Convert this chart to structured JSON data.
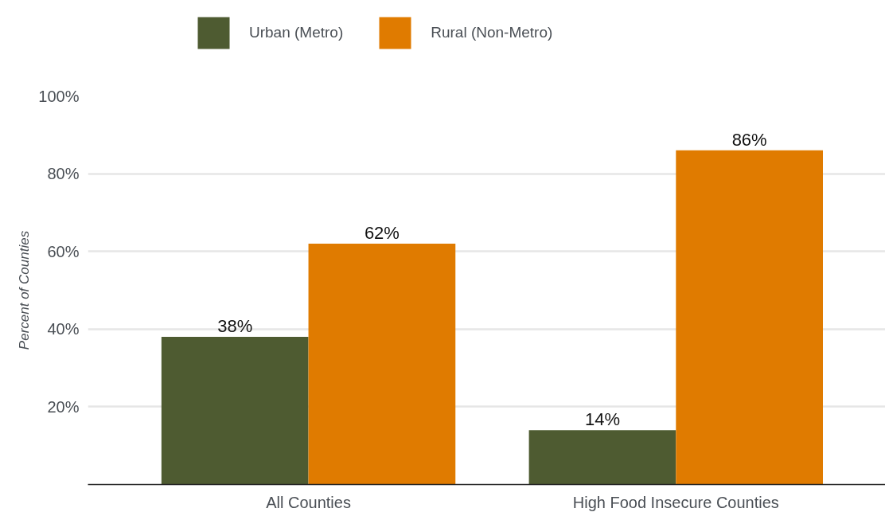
{
  "chart_data": {
    "type": "bar",
    "ylabel": "Percent of Counties",
    "categories": [
      "All Counties",
      "High Food Insecure Counties"
    ],
    "series": [
      {
        "name": "Urban (Metro)",
        "color": "#4e5b31",
        "values": [
          38,
          14
        ],
        "value_labels": [
          "38%",
          "14%"
        ]
      },
      {
        "name": "Rural (Non-Metro)",
        "color": "#e07b00",
        "values": [
          62,
          86
        ],
        "value_labels": [
          "62%",
          "86%"
        ]
      }
    ],
    "ylim": [
      0,
      100
    ],
    "yticks": [
      {
        "value": 20,
        "label": "20%"
      },
      {
        "value": 40,
        "label": "40%"
      },
      {
        "value": 60,
        "label": "60%"
      },
      {
        "value": 80,
        "label": "80%"
      },
      {
        "value": 100,
        "label": "100%"
      }
    ],
    "grid": "y",
    "legend": "top left"
  }
}
